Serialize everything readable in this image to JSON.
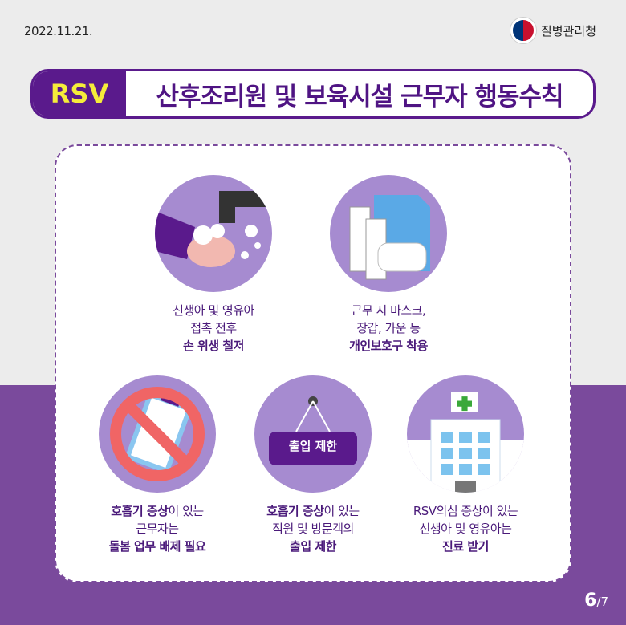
{
  "header": {
    "date": "2022.11.21.",
    "agency": "질병관리청"
  },
  "title": {
    "tag": "RSV",
    "text": "산후조리원 및 보육시설 근무자 행동수칙"
  },
  "items": [
    {
      "icon": "hand-washing-icon",
      "line1": "신생아 및 영유아",
      "line2": "접촉 전후",
      "bold": "손 위생 철저"
    },
    {
      "icon": "mask-gloves-gown-icon",
      "line1": "근무 시 마스크,",
      "line2": "장갑, 가운 등",
      "bold": "개인보호구 착용"
    },
    {
      "icon": "no-clipboard-icon",
      "bold1": "호흡기 증상",
      "line1": "이 있는",
      "line2": "근무자는",
      "bold": "돌봄 업무 배제 필요"
    },
    {
      "icon": "entry-restricted-sign-icon",
      "sign": "출입 제한",
      "bold1": "호흡기 증상",
      "line1": "이 있는",
      "line2": "직원 및 방문객의",
      "bold": "출입 제한"
    },
    {
      "icon": "hospital-icon",
      "line1": "RSV의심 증상이 있는",
      "line2": "신생아 및 영유아는",
      "bold": "진료 받기"
    }
  ],
  "pagination": {
    "current": "6",
    "total": "/7"
  },
  "colors": {
    "purple": "#5a1a8c",
    "bottom": "#7a4a9c",
    "circle": "#a68bd0",
    "tag_text": "#f5ec3a"
  }
}
